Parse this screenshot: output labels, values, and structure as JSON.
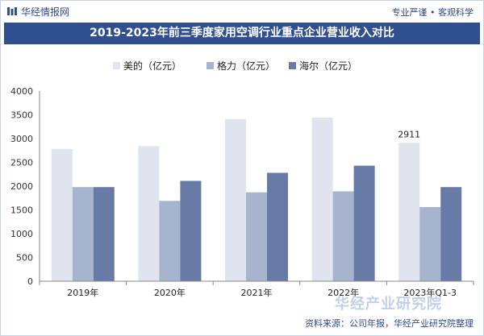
{
  "header": {
    "brand": "华经情报网",
    "slogan": "专业严谨 • 客观科学"
  },
  "footer": {
    "source": "资料来源：公司年报，华经产业研究院整理",
    "watermark": "华经产业研究院"
  },
  "colors": {
    "title_bg": "#2f4f8f",
    "midea": "#dfe4ee",
    "gree": "#a7b4cd",
    "haier": "#687ba6"
  },
  "chart_data": {
    "type": "bar",
    "title": "2019-2023年前三季度家用空调行业重点企业营业收入对比",
    "categories": [
      "2019年",
      "2020年",
      "2021年",
      "2022年",
      "2023年Q1-3"
    ],
    "series": [
      {
        "name": "美的（亿元）",
        "values": [
          2780,
          2840,
          3410,
          3440,
          2911
        ]
      },
      {
        "name": "格力（亿元）",
        "values": [
          1980,
          1690,
          1870,
          1890,
          1560
        ]
      },
      {
        "name": "海尔（亿元）",
        "values": [
          1980,
          2110,
          2280,
          2430,
          1980
        ]
      }
    ],
    "data_labels": [
      {
        "series": 0,
        "index": 4,
        "text": "2911"
      }
    ],
    "yticks": [
      "0",
      "500",
      "1000",
      "1500",
      "2000",
      "2500",
      "3000",
      "3500",
      "4000"
    ],
    "ylim": [
      0,
      4000
    ],
    "legend_position": "top"
  }
}
